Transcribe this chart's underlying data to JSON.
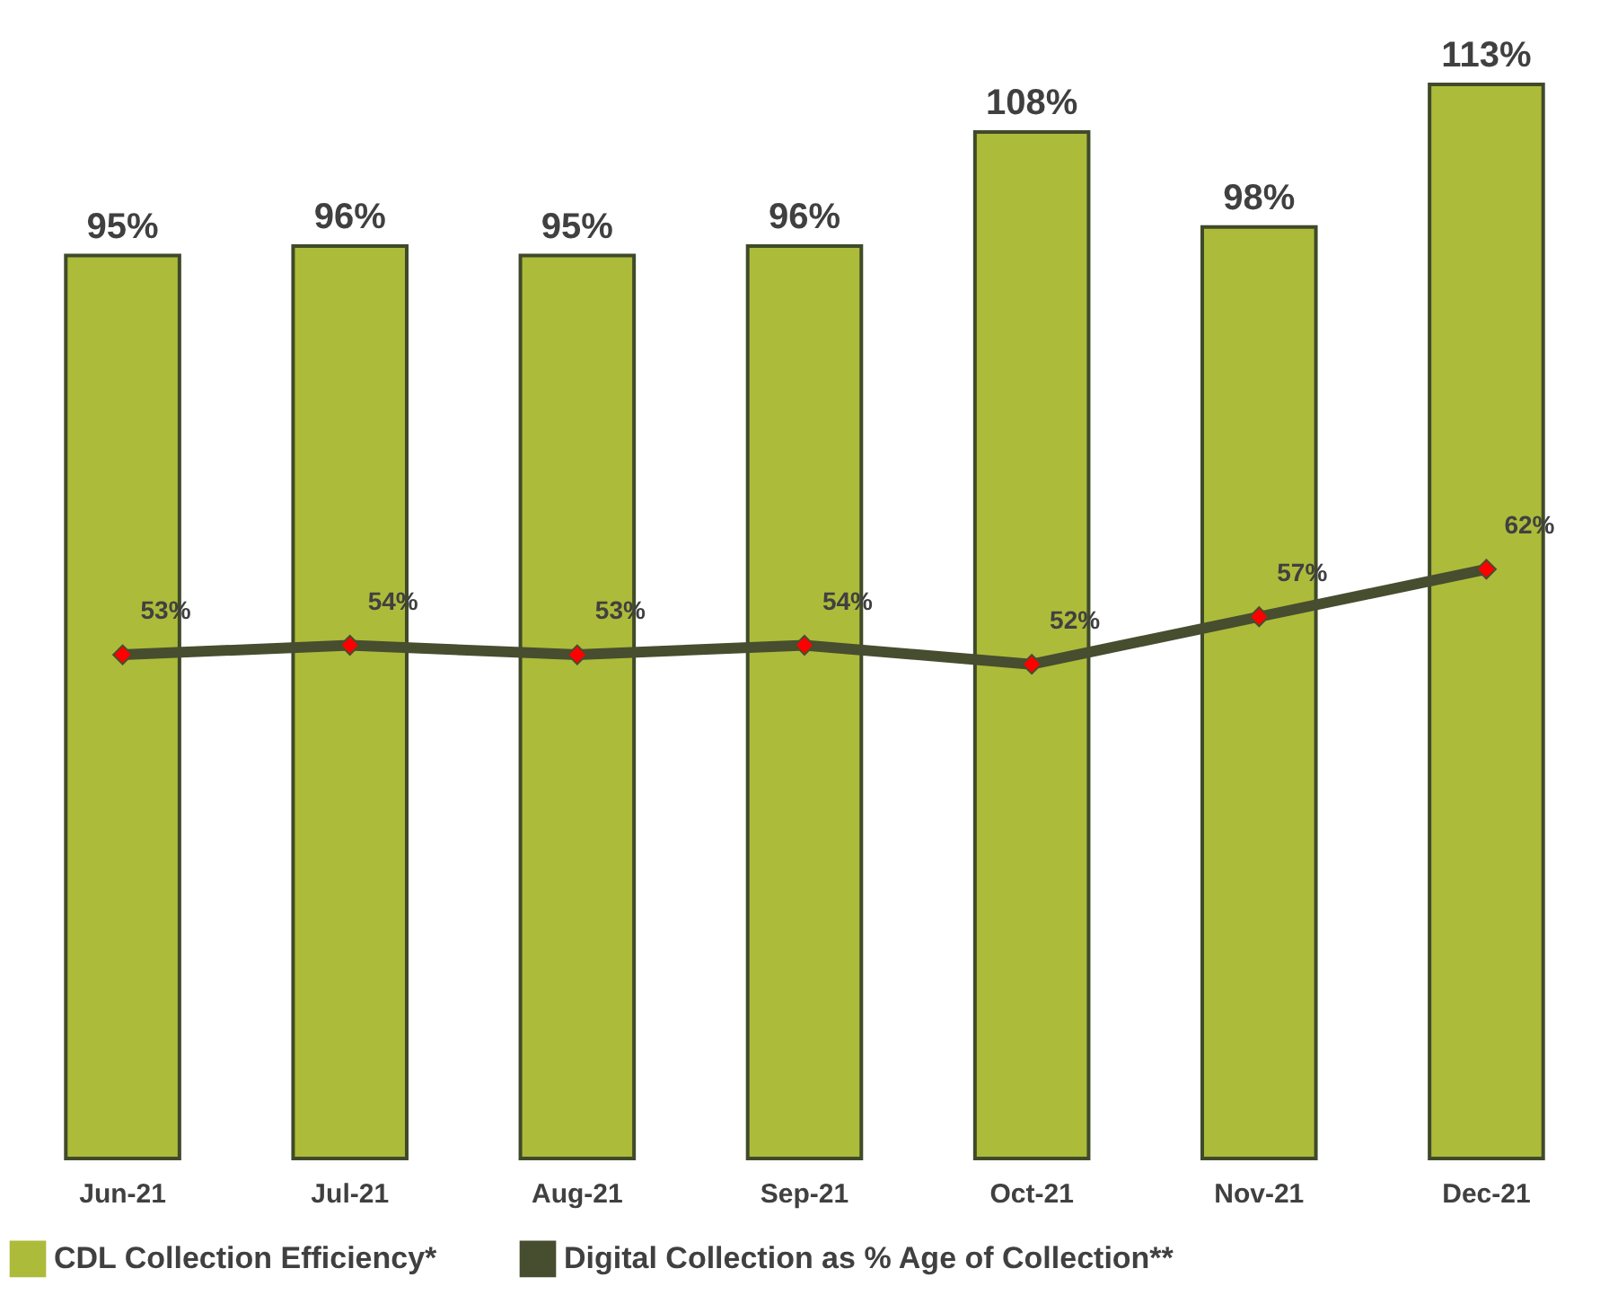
{
  "chart_data": {
    "type": "bar",
    "categories": [
      "Jun-21",
      "Jul-21",
      "Aug-21",
      "Sep-21",
      "Oct-21",
      "Nov-21",
      "Dec-21"
    ],
    "series": [
      {
        "name": "CDL Collection Efficiency*",
        "color": "#adbb3a",
        "values": [
          95,
          96,
          95,
          96,
          108,
          98,
          113
        ],
        "value_labels": [
          "95%",
          "96%",
          "95%",
          "96%",
          "108%",
          "98%",
          "113%"
        ]
      },
      {
        "name": "Digital Collection as % Age of Collection**",
        "type": "line",
        "color": "#474d2f",
        "marker": "diamond",
        "values": [
          53,
          54,
          53,
          54,
          52,
          57,
          62
        ],
        "value_labels": [
          "53%",
          "54%",
          "53%",
          "54%",
          "52%",
          "57%",
          "62%"
        ]
      }
    ],
    "tick_labels": "x",
    "grid": false,
    "legend": "bottom"
  }
}
